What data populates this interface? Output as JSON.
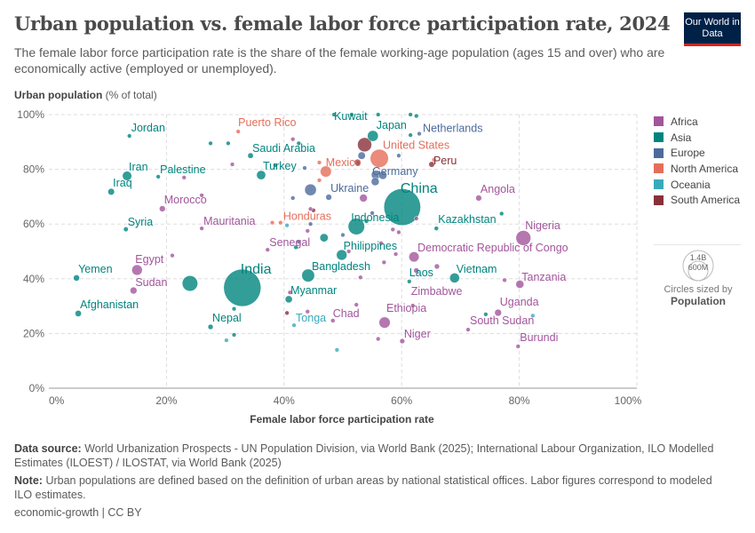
{
  "header": {
    "title": "Urban population vs. female labor force participation rate, 2024",
    "subtitle": "The female labor force participation rate is the share of the female working-age population (ages 15 and over) who are economically active (employed or unemployed).",
    "logo": "Our World in Data"
  },
  "chart_data": {
    "type": "scatter",
    "title": "Urban population vs. female labor force participation rate, 2024",
    "xlabel": "Female labor force participation rate",
    "ylabel": "Urban population",
    "ylabel_unit": "(% of total)",
    "xlim": [
      0,
      100
    ],
    "ylim": [
      0,
      100
    ],
    "xticks": [
      "0%",
      "20%",
      "40%",
      "60%",
      "80%",
      "100%"
    ],
    "yticks": [
      "0%",
      "20%",
      "40%",
      "60%",
      "80%",
      "100%"
    ],
    "grid": true,
    "legend_position": "right",
    "regions": [
      {
        "name": "Africa",
        "color": "#a2559c"
      },
      {
        "name": "Asia",
        "color": "#00847e"
      },
      {
        "name": "Europe",
        "color": "#4c6a9c"
      },
      {
        "name": "North America",
        "color": "#e56e5a"
      },
      {
        "name": "Oceania",
        "color": "#38aaba"
      },
      {
        "name": "South America",
        "color": "#883039"
      }
    ],
    "size_legend": {
      "values": [
        "1.4B",
        "600M"
      ],
      "caption": "Circles sized by",
      "variable": "Population"
    },
    "points": [
      {
        "label": "Jordan",
        "x": 13.7,
        "y": 92.2,
        "region": "Asia",
        "pop": 11
      },
      {
        "label": "Iran",
        "x": 13.3,
        "y": 77.6,
        "region": "Asia",
        "pop": 91
      },
      {
        "label": "Iraq",
        "x": 10.6,
        "y": 71.8,
        "region": "Asia",
        "pop": 46
      },
      {
        "label": "Palestine",
        "x": 18.6,
        "y": 77.3,
        "region": "Asia",
        "pop": 5
      },
      {
        "label": "Saudi Arabia",
        "x": 34.3,
        "y": 85,
        "region": "Asia",
        "pop": 33
      },
      {
        "label": "Turkey",
        "x": 36.1,
        "y": 77.9,
        "region": "Asia",
        "pop": 87
      },
      {
        "label": "Puerto Rico",
        "x": 32.2,
        "y": 93.8,
        "region": "North America",
        "pop": 3
      },
      {
        "label": "Morocco",
        "x": 19.3,
        "y": 65.6,
        "region": "Africa",
        "pop": 38
      },
      {
        "label": "Syria",
        "x": 13.1,
        "y": 58.1,
        "region": "Asia",
        "pop": 24
      },
      {
        "label": "Mauritania",
        "x": 26,
        "y": 58.4,
        "region": "Africa",
        "pop": 5
      },
      {
        "label": "Honduras",
        "x": 39.4,
        "y": 60.5,
        "region": "North America",
        "pop": 11
      },
      {
        "label": "Senegal",
        "x": 37.2,
        "y": 50.6,
        "region": "Africa",
        "pop": 18
      },
      {
        "label": "Kuwait",
        "x": 48.5,
        "y": 100,
        "region": "Asia",
        "pop": 5
      },
      {
        "label": "Japan",
        "x": 55.1,
        "y": 92.2,
        "region": "Asia",
        "pop": 124
      },
      {
        "label": "Netherlands",
        "x": 63,
        "y": 93,
        "region": "Europe",
        "pop": 18
      },
      {
        "label": "United States",
        "x": 56.2,
        "y": 84,
        "region": "North America",
        "pop": 345
      },
      {
        "label": "Mexico",
        "x": 47.1,
        "y": 79.2,
        "region": "North America",
        "pop": 131
      },
      {
        "label": "Peru",
        "x": 65.1,
        "y": 81.8,
        "region": "South America",
        "pop": 34
      },
      {
        "label": "Germany",
        "x": 55.6,
        "y": 78,
        "region": "Europe",
        "pop": 84
      },
      {
        "label": "Ukraine",
        "x": 47.6,
        "y": 69.8,
        "region": "Europe",
        "pop": 38
      },
      {
        "label": "China",
        "x": 60.1,
        "y": 66.2,
        "region": "Asia",
        "pop": 1410
      },
      {
        "label": "Indonesia",
        "x": 52.3,
        "y": 59.1,
        "region": "Asia",
        "pop": 283
      },
      {
        "label": "Kazakhstan",
        "x": 65.9,
        "y": 58.4,
        "region": "Asia",
        "pop": 20
      },
      {
        "label": "Angola",
        "x": 73.1,
        "y": 69.5,
        "region": "Africa",
        "pop": 37
      },
      {
        "label": "Nigeria",
        "x": 80.7,
        "y": 54.9,
        "region": "Africa",
        "pop": 233
      },
      {
        "label": "Democratic Republic of Congo",
        "x": 62.1,
        "y": 48,
        "region": "Africa",
        "pop": 109
      },
      {
        "label": "Philippines",
        "x": 49.8,
        "y": 48.7,
        "region": "Asia",
        "pop": 116
      },
      {
        "label": "Bangladesh",
        "x": 44.1,
        "y": 41.2,
        "region": "Asia",
        "pop": 174
      },
      {
        "label": "India",
        "x": 32.9,
        "y": 36.7,
        "region": "Asia",
        "pop": 1450
      },
      {
        "label": "Egypt",
        "x": 15,
        "y": 43.2,
        "region": "Africa",
        "pop": 116
      },
      {
        "label": "Sudan",
        "x": 14.4,
        "y": 35.7,
        "region": "Africa",
        "pop": 50
      },
      {
        "label": "Yemen",
        "x": 4.7,
        "y": 40.3,
        "region": "Asia",
        "pop": 40
      },
      {
        "label": "Afghanistan",
        "x": 5,
        "y": 27.3,
        "region": "Asia",
        "pop": 42
      },
      {
        "label": "Nepal",
        "x": 27.5,
        "y": 22.4,
        "region": "Asia",
        "pop": 29
      },
      {
        "label": "Myanmar",
        "x": 40.8,
        "y": 32.5,
        "region": "Asia",
        "pop": 54
      },
      {
        "label": "Tonga",
        "x": 41.7,
        "y": 23,
        "region": "Oceania",
        "pop": 0.1
      },
      {
        "label": "Chad",
        "x": 48.3,
        "y": 24.7,
        "region": "Africa",
        "pop": 20
      },
      {
        "label": "Ethiopia",
        "x": 57.1,
        "y": 24,
        "region": "Africa",
        "pop": 132
      },
      {
        "label": "Niger",
        "x": 60.1,
        "y": 17.2,
        "region": "Africa",
        "pop": 27
      },
      {
        "label": "Laos",
        "x": 61.3,
        "y": 39,
        "region": "Asia",
        "pop": 8
      },
      {
        "label": "Vietnam",
        "x": 69,
        "y": 40.3,
        "region": "Asia",
        "pop": 101
      },
      {
        "label": "Tanzania",
        "x": 80.1,
        "y": 38,
        "region": "Africa",
        "pop": 69
      },
      {
        "label": "Zimbabwe",
        "x": 61.9,
        "y": 30.2,
        "region": "Africa",
        "pop": 17
      },
      {
        "label": "Uganda",
        "x": 76.4,
        "y": 27.6,
        "region": "Africa",
        "pop": 50
      },
      {
        "label": "South Sudan",
        "x": 71.3,
        "y": 21.4,
        "region": "Africa",
        "pop": 12
      },
      {
        "label": "Burundi",
        "x": 79.8,
        "y": 15.3,
        "region": "Africa",
        "pop": 14
      },
      {
        "x": 24,
        "y": 38.3,
        "region": "Asia",
        "pop": 251
      },
      {
        "x": 55.5,
        "y": 75.5,
        "region": "Europe",
        "pop": 68
      },
      {
        "x": 56.8,
        "y": 77.8,
        "region": "Europe",
        "pop": 69
      },
      {
        "x": 53.7,
        "y": 89,
        "region": "South America",
        "pop": 212
      },
      {
        "x": 52.5,
        "y": 82.5,
        "region": "South America",
        "pop": 46
      },
      {
        "x": 53.2,
        "y": 85,
        "region": "Europe",
        "pop": 59
      },
      {
        "x": 44.5,
        "y": 72.5,
        "region": "Europe",
        "pop": 143
      },
      {
        "x": 53.5,
        "y": 69.5,
        "region": "Africa",
        "pop": 64
      },
      {
        "x": 46.8,
        "y": 55,
        "region": "Asia",
        "pop": 71
      },
      {
        "x": 53,
        "y": 40.5,
        "region": "Africa",
        "pop": 4
      },
      {
        "x": 62.5,
        "y": 43,
        "region": "Africa",
        "pop": 30
      },
      {
        "x": 66,
        "y": 44.5,
        "region": "Africa",
        "pop": 28
      },
      {
        "x": 77,
        "y": 63.8,
        "region": "Asia",
        "pop": 4
      },
      {
        "x": 74.3,
        "y": 27,
        "region": "Asia",
        "pop": 3
      },
      {
        "x": 82.3,
        "y": 26.5,
        "region": "Oceania",
        "pop": 10
      },
      {
        "x": 77.5,
        "y": 39.5,
        "region": "Africa",
        "pop": 13
      },
      {
        "x": 44,
        "y": 28,
        "region": "Africa",
        "pop": 11
      },
      {
        "x": 41,
        "y": 35,
        "region": "Africa",
        "pop": 3
      },
      {
        "x": 40.5,
        "y": 27.5,
        "region": "South America",
        "pop": 1
      },
      {
        "x": 30.2,
        "y": 17.5,
        "region": "Oceania",
        "pop": 1
      },
      {
        "x": 31.5,
        "y": 19.5,
        "region": "Asia",
        "pop": 6
      },
      {
        "x": 31.5,
        "y": 29,
        "region": "Asia",
        "pop": 1
      },
      {
        "x": 49,
        "y": 14,
        "region": "Oceania",
        "pop": 1
      },
      {
        "x": 56,
        "y": 18,
        "region": "Africa",
        "pop": 3
      },
      {
        "x": 52.3,
        "y": 30.5,
        "region": "Africa",
        "pop": 9
      },
      {
        "x": 21,
        "y": 48.5,
        "region": "Africa",
        "pop": 2
      },
      {
        "x": 42,
        "y": 51.5,
        "region": "Asia",
        "pop": 3
      },
      {
        "x": 27.5,
        "y": 89.5,
        "region": "Asia",
        "pop": 3
      },
      {
        "x": 30.5,
        "y": 89.5,
        "region": "Asia",
        "pop": 11
      },
      {
        "x": 31.2,
        "y": 81.8,
        "region": "Africa",
        "pop": 2
      },
      {
        "x": 38.5,
        "y": 81.5,
        "region": "Asia",
        "pop": 2
      },
      {
        "x": 26,
        "y": 70.5,
        "region": "Africa",
        "pop": 2
      },
      {
        "x": 23,
        "y": 77,
        "region": "Africa",
        "pop": 4
      },
      {
        "x": 41.5,
        "y": 91,
        "region": "Africa",
        "pop": 2
      },
      {
        "x": 42.5,
        "y": 89.5,
        "region": "Asia",
        "pop": 5
      },
      {
        "x": 46,
        "y": 82.5,
        "region": "North America",
        "pop": 5
      },
      {
        "x": 43.5,
        "y": 80.5,
        "region": "Europe",
        "pop": 10
      },
      {
        "x": 41.5,
        "y": 69.5,
        "region": "Europe",
        "pop": 4
      },
      {
        "x": 46,
        "y": 76,
        "region": "North America",
        "pop": 2
      },
      {
        "x": 45,
        "y": 65,
        "region": "South America",
        "pop": 2
      },
      {
        "x": 44.5,
        "y": 65.5,
        "region": "Africa",
        "pop": 2
      },
      {
        "x": 44.5,
        "y": 60,
        "region": "Europe",
        "pop": 3
      },
      {
        "x": 44,
        "y": 57.5,
        "region": "Africa",
        "pop": 2
      },
      {
        "x": 42.5,
        "y": 53.5,
        "region": "Europe",
        "pop": 3
      },
      {
        "x": 40.5,
        "y": 59.5,
        "region": "Oceania",
        "pop": 1
      },
      {
        "x": 38,
        "y": 60.5,
        "region": "North America",
        "pop": 2
      },
      {
        "x": 51.5,
        "y": 100,
        "region": "Asia",
        "pop": 1
      },
      {
        "x": 56,
        "y": 100,
        "region": "Asia",
        "pop": 1
      },
      {
        "x": 61.5,
        "y": 100,
        "region": "Asia",
        "pop": 1
      },
      {
        "x": 62.5,
        "y": 99.5,
        "region": "Asia",
        "pop": 1
      },
      {
        "x": 61.5,
        "y": 92.5,
        "region": "Asia",
        "pop": 1
      },
      {
        "x": 59.5,
        "y": 85,
        "region": "Europe",
        "pop": 9
      },
      {
        "x": 65.5,
        "y": 83.5,
        "region": "North America",
        "pop": 3
      },
      {
        "x": 62.5,
        "y": 62,
        "region": "Africa",
        "pop": 3
      },
      {
        "x": 58.5,
        "y": 58,
        "region": "Africa",
        "pop": 3
      },
      {
        "x": 59.5,
        "y": 57,
        "region": "Africa",
        "pop": 2
      },
      {
        "x": 56.5,
        "y": 53,
        "region": "Africa",
        "pop": 3
      },
      {
        "x": 57,
        "y": 46,
        "region": "Africa",
        "pop": 4
      },
      {
        "x": 59,
        "y": 49,
        "region": "Africa",
        "pop": 2
      },
      {
        "x": 55,
        "y": 64,
        "region": "Europe",
        "pop": 3
      },
      {
        "x": 51,
        "y": 50,
        "region": "Africa",
        "pop": 4
      },
      {
        "x": 50,
        "y": 56,
        "region": "Europe",
        "pop": 3
      },
      {
        "x": 54,
        "y": 61,
        "region": "Asia",
        "pop": 3
      }
    ]
  },
  "footer": {
    "source_label": "Data source:",
    "source": "World Urbanization Prospects - UN Population Division, via World Bank (2025); International Labour Organization, ILO Modelled Estimates (ILOEST) / ILOSTAT, via World Bank (2025)",
    "note_label": "Note:",
    "note": "Urban populations are defined based on the definition of urban areas by national statistical offices. Labor figures correspond to modeled ILO estimates.",
    "license": "economic-growth | CC BY"
  }
}
